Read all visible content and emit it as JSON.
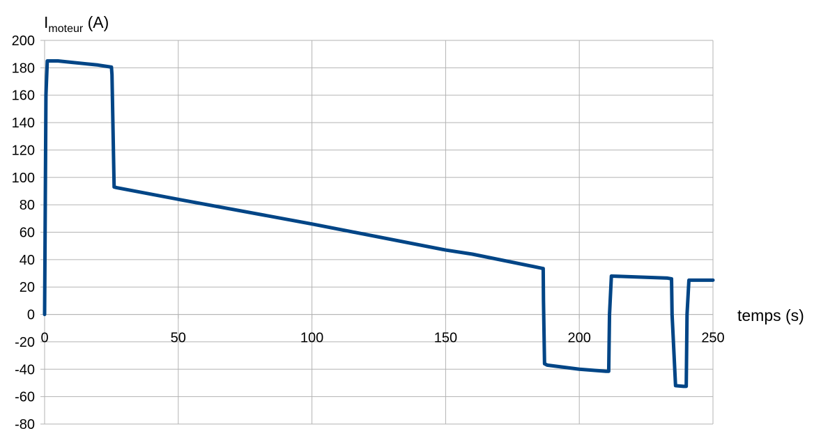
{
  "chart_data": {
    "type": "line",
    "title": "",
    "ylabel": {
      "main": "I",
      "sub": "moteur",
      "unit": " (A)"
    },
    "xlabel": "temps (s)",
    "xlim": [
      0,
      250
    ],
    "ylim": [
      -80,
      200
    ],
    "x_ticks": [
      0,
      50,
      100,
      150,
      200,
      250
    ],
    "y_ticks": [
      200,
      180,
      160,
      140,
      120,
      100,
      80,
      60,
      40,
      20,
      0,
      -20,
      -40,
      -60,
      -80
    ],
    "grid": true,
    "legend": "none",
    "series": [
      {
        "color": "#004586",
        "x": [
          0,
          0.5,
          1,
          5,
          10,
          15,
          20,
          25,
          25.2,
          26,
          27,
          50,
          100,
          150,
          160,
          186.5,
          186.6,
          187,
          188,
          200,
          210,
          211,
          211.3,
          212,
          233,
          234.5,
          234.7,
          236,
          239,
          240,
          240.3,
          241,
          250
        ],
        "y": [
          0,
          160,
          185,
          185,
          184,
          183,
          182,
          180.5,
          175,
          93,
          92.5,
          84,
          66,
          47,
          44,
          33.5,
          10,
          -36,
          -37,
          -40,
          -41.5,
          -41.5,
          0,
          28,
          26.5,
          26,
          0,
          -52,
          -52.5,
          -52.5,
          0,
          25,
          25
        ]
      }
    ]
  }
}
